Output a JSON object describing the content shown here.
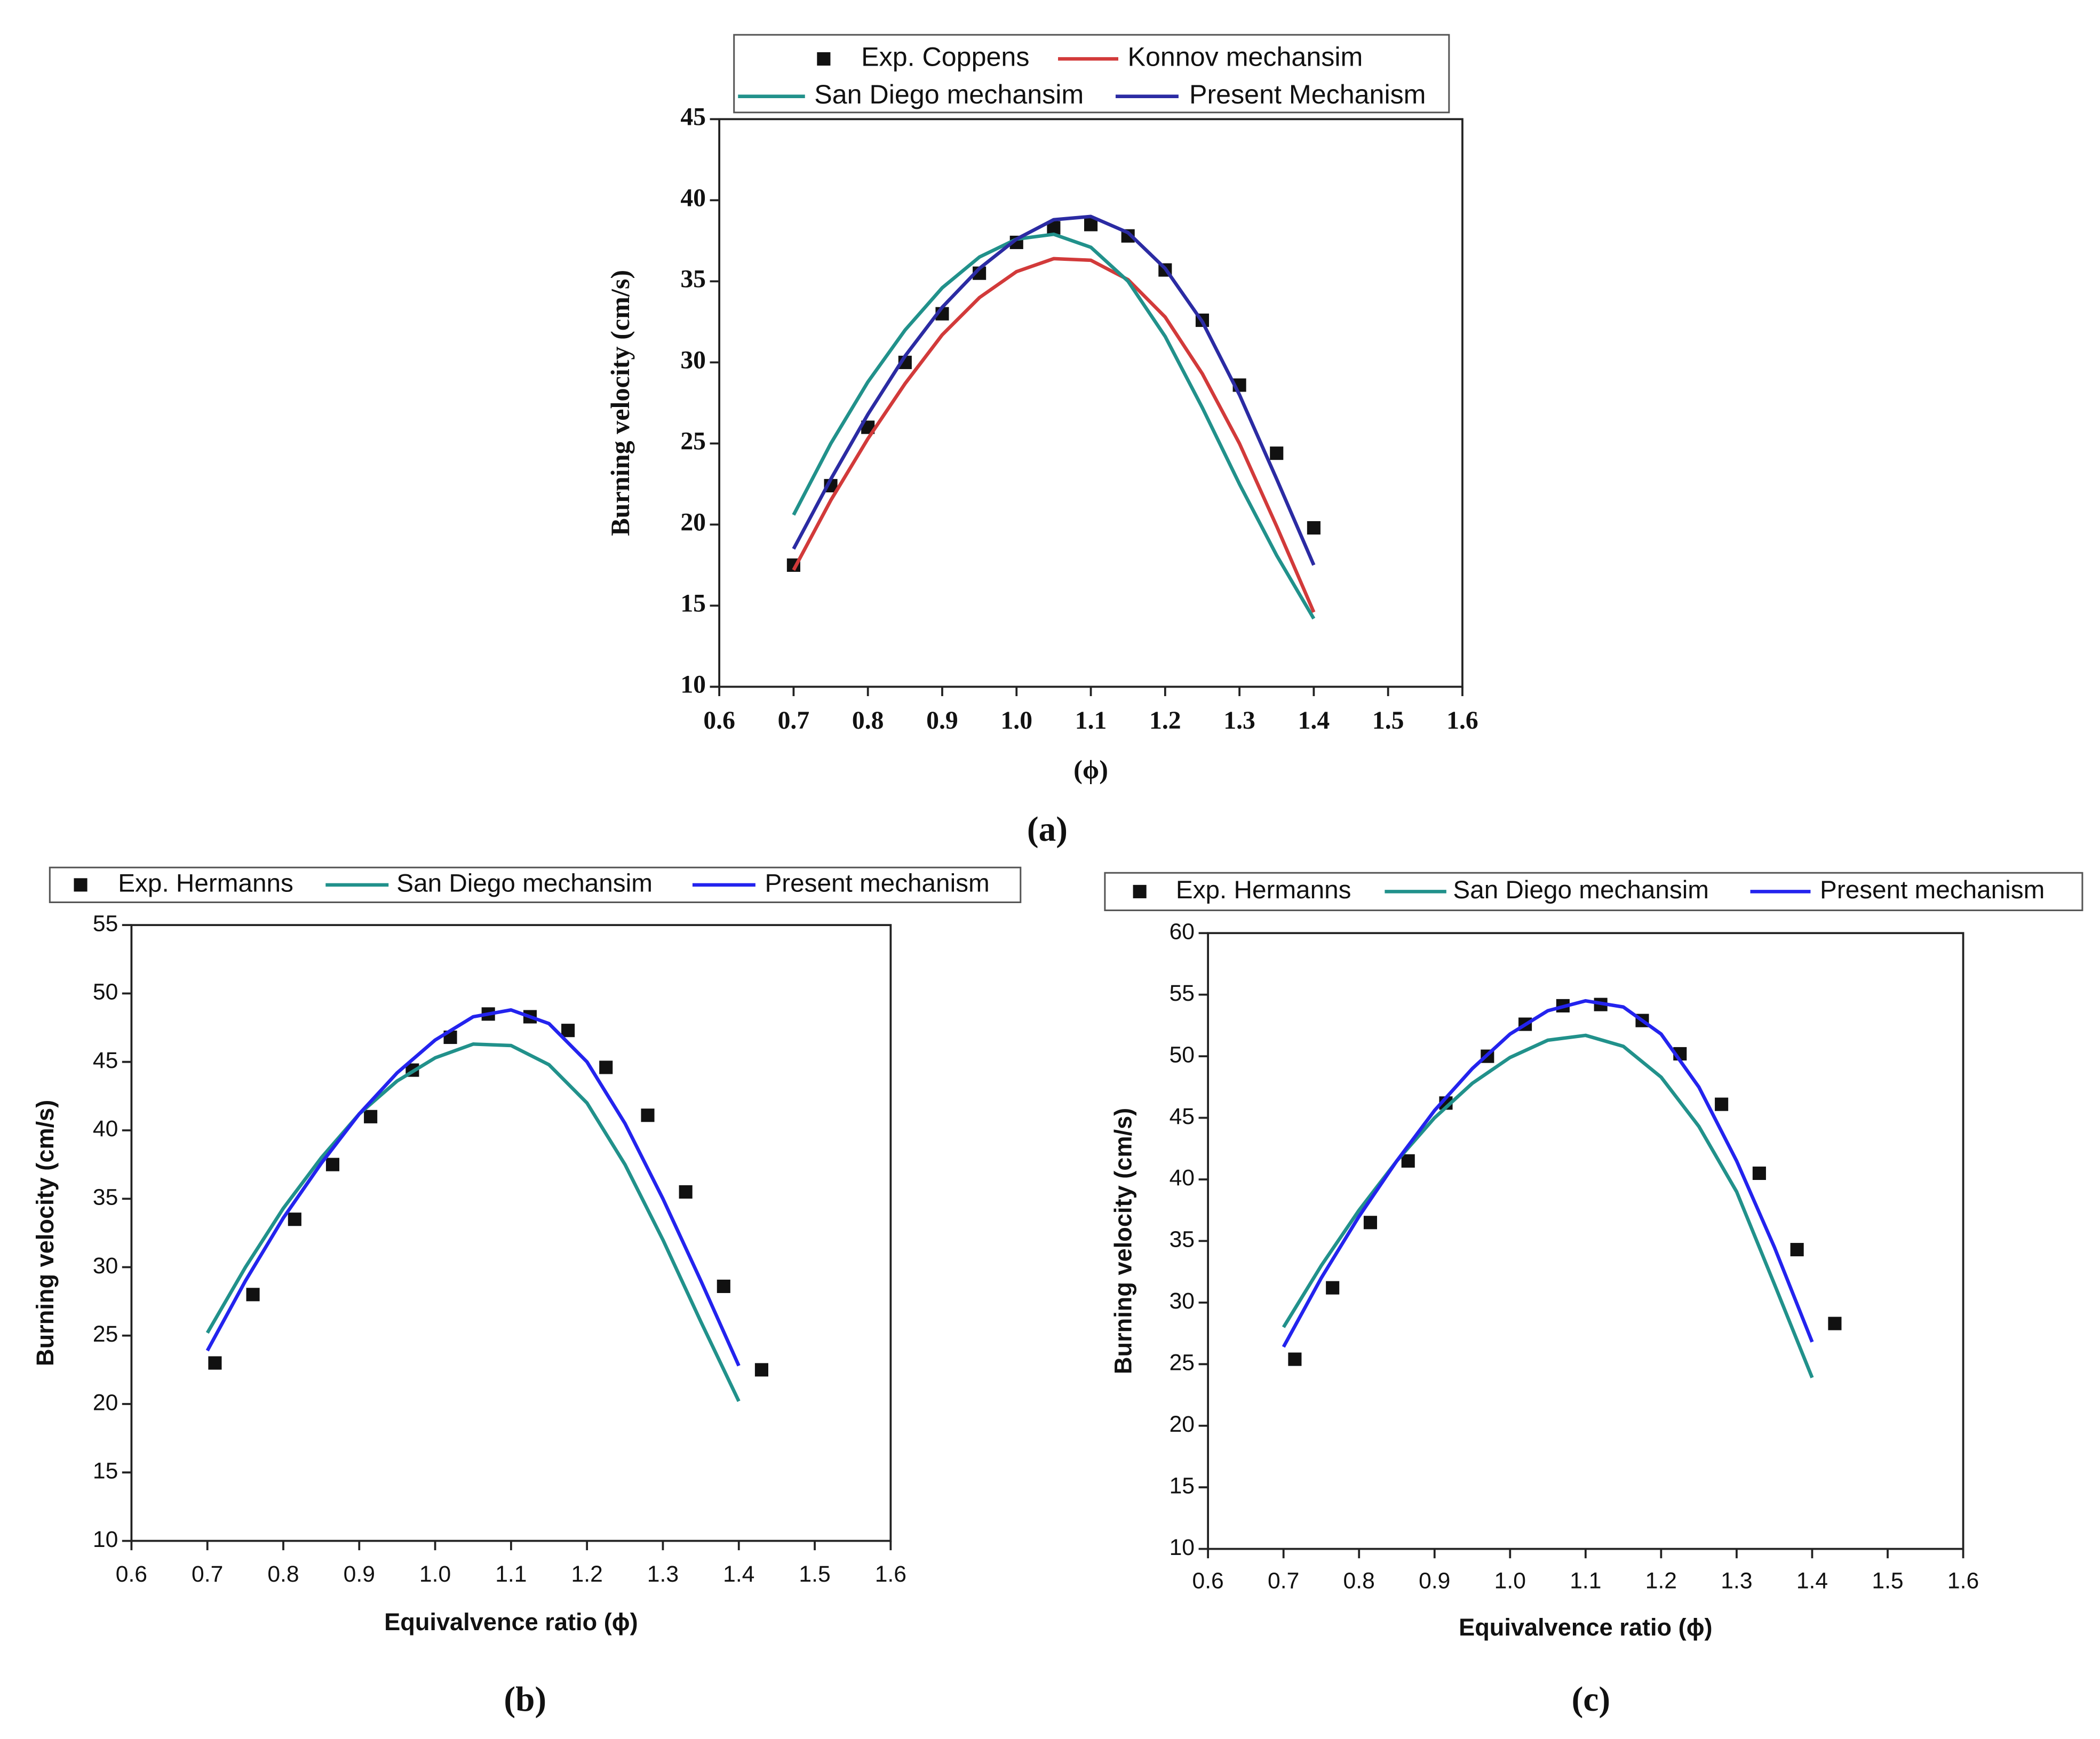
{
  "chart_data": [
    {
      "type": "line",
      "caption": "(a)",
      "y_label": "Burning velocity (cm/s)",
      "x_label": "(ϕ)",
      "xlim": [
        0.6,
        1.6
      ],
      "ylim": [
        10,
        45
      ],
      "xticks": [
        0.6,
        0.7,
        0.8,
        0.9,
        {
          "value": 1,
          "label": "1.0"
        },
        1.1,
        1.2,
        1.3,
        1.4,
        1.5,
        1.6
      ],
      "yticks": [
        10,
        15,
        20,
        25,
        30,
        35,
        40,
        45
      ],
      "legend": "top",
      "series": [
        {
          "name": "Exp. Coppens",
          "type": "scatter",
          "color": "#111111",
          "x": [
            0.7,
            0.75,
            0.8,
            0.85,
            0.9,
            0.95,
            1.0,
            1.05,
            1.1,
            1.15,
            1.2,
            1.25,
            1.3,
            1.35,
            1.4
          ],
          "values": [
            17.5,
            22.4,
            26,
            30,
            33,
            35.5,
            37.4,
            38.3,
            38.5,
            37.8,
            35.7,
            32.6,
            28.6,
            24.4,
            19.8
          ]
        },
        {
          "name": "Konnov mechansim",
          "type": "line",
          "color": "#d23a3a",
          "x": [
            0.7,
            0.75,
            0.8,
            0.85,
            0.9,
            0.95,
            1.0,
            1.05,
            1.1,
            1.15,
            1.2,
            1.25,
            1.3,
            1.35,
            1.4
          ],
          "values": [
            17.2,
            21.5,
            25.3,
            28.7,
            31.7,
            34,
            35.6,
            36.4,
            36.3,
            35.1,
            32.8,
            29.3,
            25,
            19.9,
            14.6
          ]
        },
        {
          "name": "San Diego mechansim",
          "type": "line",
          "color": "#21918b",
          "x": [
            0.7,
            0.75,
            0.8,
            0.85,
            0.9,
            0.95,
            1.0,
            1.05,
            1.1,
            1.15,
            1.2,
            1.25,
            1.3,
            1.35,
            1.4
          ],
          "values": [
            20.6,
            25,
            28.8,
            32,
            34.6,
            36.5,
            37.6,
            37.9,
            37.1,
            35,
            31.6,
            27.2,
            22.5,
            18.1,
            14.2
          ]
        },
        {
          "name": "Present Mechanism",
          "type": "line",
          "color": "#2b2ba3",
          "x": [
            0.7,
            0.75,
            0.8,
            0.85,
            0.9,
            0.95,
            1.0,
            1.05,
            1.1,
            1.15,
            1.2,
            1.25,
            1.3,
            1.35,
            1.4
          ],
          "values": [
            18.5,
            22.8,
            26.8,
            30.4,
            33.4,
            35.8,
            37.6,
            38.8,
            39,
            38,
            35.8,
            32.5,
            28,
            22.8,
            17.5
          ]
        }
      ]
    },
    {
      "type": "line",
      "caption": "(b)",
      "y_label": "Burning velocity (cm/s)",
      "x_label": "Equivalvence ratio (ϕ)",
      "xlim": [
        0.6,
        1.6
      ],
      "ylim": [
        10,
        55
      ],
      "xticks": [
        0.6,
        0.7,
        0.8,
        0.9,
        {
          "value": 1,
          "label": "1.0"
        },
        1.1,
        1.2,
        1.3,
        1.4,
        1.5,
        1.6
      ],
      "yticks": [
        10,
        15,
        20,
        25,
        30,
        35,
        40,
        45,
        50,
        55
      ],
      "legend": "top",
      "series": [
        {
          "name": "Exp. Hermanns",
          "type": "scatter",
          "color": "#111111",
          "x": [
            0.71,
            0.76,
            0.815,
            0.865,
            0.915,
            0.97,
            1.02,
            1.07,
            1.125,
            1.175,
            1.225,
            1.28,
            1.33,
            1.38,
            1.43
          ],
          "values": [
            23,
            28,
            33.5,
            37.5,
            41,
            44.4,
            46.8,
            48.5,
            48.3,
            47.3,
            44.6,
            41.1,
            35.5,
            28.6,
            22.5
          ]
        },
        {
          "name": "San Diego mechansim",
          "type": "line",
          "color": "#21918b",
          "x": [
            0.7,
            0.75,
            0.8,
            0.85,
            0.9,
            0.95,
            1.0,
            1.05,
            1.1,
            1.15,
            1.2,
            1.25,
            1.3,
            1.35,
            1.4
          ],
          "values": [
            25.2,
            30,
            34.3,
            38,
            41.2,
            43.6,
            45.3,
            46.3,
            46.2,
            44.8,
            42,
            37.5,
            32,
            26,
            20.2
          ]
        },
        {
          "name": "Present mechanism",
          "type": "line",
          "color": "#2323ee",
          "x": [
            0.7,
            0.75,
            0.8,
            0.85,
            0.9,
            0.95,
            1.0,
            1.05,
            1.1,
            1.15,
            1.2,
            1.25,
            1.3,
            1.35,
            1.4
          ],
          "values": [
            23.9,
            29,
            33.6,
            37.6,
            41.2,
            44.2,
            46.6,
            48.3,
            48.8,
            47.8,
            45,
            40.5,
            35,
            29,
            22.8
          ]
        }
      ]
    },
    {
      "type": "line",
      "caption": "(c)",
      "y_label": "Burning velocity (cm/s)",
      "x_label": "Equivalvence ratio (ϕ)",
      "xlim": [
        0.6,
        1.6
      ],
      "ylim": [
        10,
        60
      ],
      "xticks": [
        0.6,
        0.7,
        0.8,
        0.9,
        {
          "value": 1,
          "label": "1.0"
        },
        1.1,
        1.2,
        1.3,
        1.4,
        1.5,
        1.6
      ],
      "yticks": [
        10,
        15,
        20,
        25,
        30,
        35,
        40,
        45,
        50,
        55,
        60
      ],
      "legend": "top",
      "series": [
        {
          "name": "Exp. Hermanns",
          "type": "scatter",
          "color": "#111111",
          "x": [
            0.715,
            0.765,
            0.815,
            0.865,
            0.915,
            0.97,
            1.02,
            1.07,
            1.12,
            1.175,
            1.225,
            1.28,
            1.33,
            1.38,
            1.43
          ],
          "values": [
            25.4,
            31.2,
            36.5,
            41.5,
            46.2,
            50,
            52.6,
            54.1,
            54.2,
            52.9,
            50.2,
            46.1,
            40.5,
            34.3,
            28.3
          ]
        },
        {
          "name": "San Diego mechansim",
          "type": "line",
          "color": "#21918b",
          "x": [
            0.7,
            0.75,
            0.8,
            0.85,
            0.9,
            0.95,
            1.0,
            1.05,
            1.1,
            1.15,
            1.2,
            1.25,
            1.3,
            1.35,
            1.4
          ],
          "values": [
            28,
            33,
            37.5,
            41.5,
            45,
            47.8,
            49.9,
            51.3,
            51.7,
            50.8,
            48.3,
            44.3,
            39,
            31.5,
            23.9
          ]
        },
        {
          "name": "Present mechanism",
          "type": "line",
          "color": "#2323ee",
          "x": [
            0.7,
            0.75,
            0.8,
            0.85,
            0.9,
            0.95,
            1.0,
            1.05,
            1.1,
            1.15,
            1.2,
            1.25,
            1.3,
            1.35,
            1.4
          ],
          "values": [
            26.4,
            32,
            37,
            41.5,
            45.6,
            49,
            51.8,
            53.7,
            54.5,
            54,
            51.8,
            47.5,
            41.5,
            34.5,
            26.8
          ]
        }
      ]
    }
  ]
}
